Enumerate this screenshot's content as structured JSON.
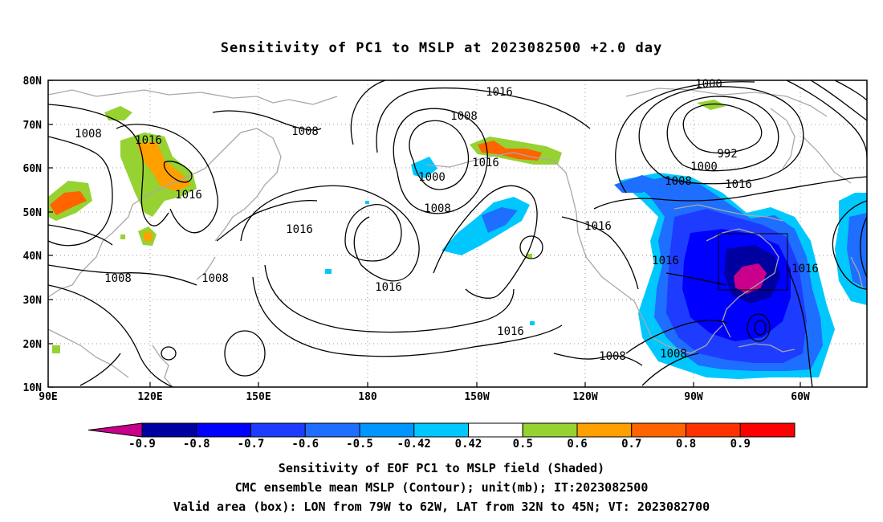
{
  "title": "Sensitivity of PC1 to MSLP at 2023082500 +2.0 day",
  "lat_labels": [
    "80N",
    "70N",
    "60N",
    "50N",
    "40N",
    "30N",
    "20N",
    "10N"
  ],
  "lon_labels": [
    "90E",
    "120E",
    "150E",
    "180",
    "150W",
    "120W",
    "90W",
    "60W"
  ],
  "contour_labels": [
    {
      "text": "1016"
    },
    {
      "text": "1008"
    },
    {
      "text": "1008"
    },
    {
      "text": "1016"
    },
    {
      "text": "1008"
    },
    {
      "text": "1016"
    },
    {
      "text": "1000"
    },
    {
      "text": "1008"
    },
    {
      "text": "1016"
    },
    {
      "text": "1000"
    },
    {
      "text": "992"
    },
    {
      "text": "1000"
    },
    {
      "text": "1008"
    },
    {
      "text": "1016"
    },
    {
      "text": "1016"
    },
    {
      "text": "1016"
    },
    {
      "text": "1016"
    },
    {
      "text": "1008"
    },
    {
      "text": "1008"
    },
    {
      "text": "1016"
    },
    {
      "text": "1016"
    },
    {
      "text": "1008"
    },
    {
      "text": "1008"
    },
    {
      "text": "1016"
    }
  ],
  "colorbar": {
    "labels": [
      "-0.9",
      "-0.8",
      "-0.7",
      "-0.6",
      "-0.5",
      "-0.42",
      "0.42",
      "0.5",
      "0.6",
      "0.7",
      "0.8",
      "0.9"
    ],
    "colors": [
      "#0000a0",
      "#0000ff",
      "#1e3cff",
      "#1e6eff",
      "#0096ff",
      "#00c8ff",
      "#ffffff",
      "#96d232",
      "#ffa000",
      "#ff6400",
      "#ff3200",
      "#ff0000"
    ],
    "low_end_color": "#c8008c",
    "high_end_color": "#ff9ec8"
  },
  "captions": {
    "line1": "Sensitivity of EOF PC1 to MSLP field (Shaded)",
    "line2": "CMC ensemble mean MSLP (Contour); unit(mb); IT:2023082500",
    "line3": "Valid area (box): LON from 79W to 62W, LAT from 32N to 45N; VT: 2023082700"
  }
}
